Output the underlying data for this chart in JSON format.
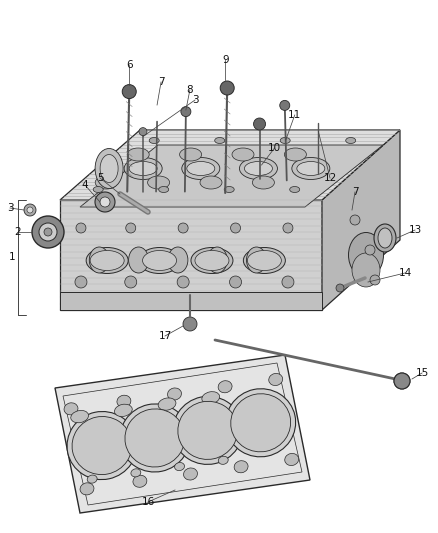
{
  "background_color": "#ffffff",
  "fig_width": 4.38,
  "fig_height": 5.33,
  "dpi": 100,
  "line_color": "#2a2a2a",
  "body_top_color": "#e0e0e0",
  "body_front_color": "#cccccc",
  "body_right_color": "#b8b8b8",
  "gasket_color": "#d8d8d8",
  "bolt_color": "#444444",
  "hatch_color": "#888888",
  "label_fontsize": 7.5
}
